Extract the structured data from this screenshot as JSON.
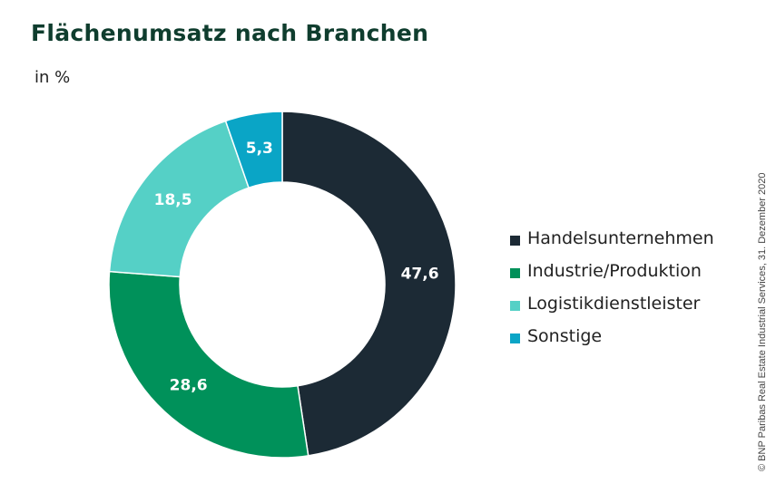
{
  "title": "Flächenumsatz nach Branchen",
  "unit": "in %",
  "credit": "© BNP Paribas Real Estate Industrial Services, 31. Dezember 2020",
  "chart_data": {
    "type": "pie",
    "variant": "donut",
    "title": "Flächenumsatz nach Branchen",
    "unit": "in %",
    "start": "12 o'clock, clockwise",
    "categories": [
      "Handelsunternehmen",
      "Industrie/Produktion",
      "Logistikdienstleister",
      "Sonstige"
    ],
    "values": [
      47.6,
      28.6,
      18.5,
      5.3
    ],
    "labels": [
      "47,6",
      "28,6",
      "18,5",
      "5,3"
    ],
    "colors": [
      "#1c2a35",
      "#00915a",
      "#55d0c6",
      "#0aa5c6"
    ],
    "legend_position": "right"
  }
}
